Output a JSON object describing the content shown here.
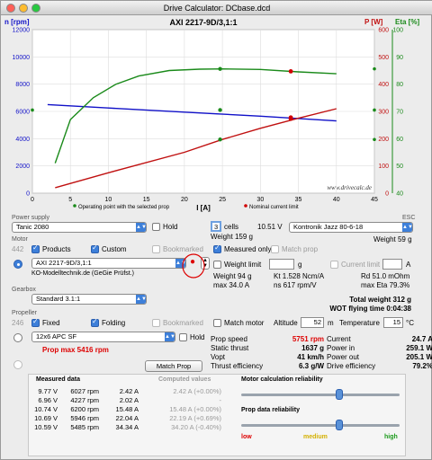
{
  "window": {
    "title": "Drive Calculator: DCbase.dcd"
  },
  "chart_data": {
    "type": "line",
    "title": "AXI 2217-9D/3,1:1",
    "xlabel": "I [A]",
    "ylabel_left": "n [rpm]",
    "ylabel_p": "P [W]",
    "ylabel_eta": "Eta [%]",
    "xlim": [
      0,
      45
    ],
    "ylim_left": [
      0,
      12000
    ],
    "ylim_p": [
      0,
      600
    ],
    "ylim_eta": [
      40,
      100
    ],
    "x_ticks": [
      "0",
      "5",
      "10",
      "15",
      "20",
      "25",
      "30",
      "35",
      "40",
      "45"
    ],
    "y_left_ticks": [
      "0",
      "2000",
      "4000",
      "6000",
      "8000",
      "10000",
      "12000"
    ],
    "y_p_ticks": [
      "0",
      "100",
      "200",
      "300",
      "400",
      "500",
      "600"
    ],
    "y_eta_ticks": [
      "40",
      "50",
      "60",
      "70",
      "80",
      "90",
      "100"
    ],
    "series": [
      {
        "key": "rpm",
        "color": "#1010c8",
        "axis": "left",
        "x": [
          2,
          10,
          20,
          30,
          40
        ],
        "y": [
          6500,
          6250,
          5950,
          5650,
          5300
        ]
      },
      {
        "key": "eta",
        "color": "#1a8a1a",
        "axis": "eta",
        "x": [
          3,
          5,
          8,
          11,
          14,
          18,
          22,
          25,
          30,
          35,
          40
        ],
        "y": [
          51,
          67,
          75,
          80,
          83,
          85,
          85.5,
          85.6,
          85.4,
          84.5,
          83.8
        ]
      },
      {
        "key": "power",
        "color": "#c01010",
        "axis": "p",
        "x": [
          3,
          10,
          20,
          25,
          30,
          35,
          40
        ],
        "y": [
          20,
          75,
          150,
          197,
          238,
          275,
          310
        ]
      }
    ],
    "operating_points": [
      {
        "x": 24.7,
        "y": 6100,
        "axis": "left",
        "color": "#1a8a1a"
      },
      {
        "x": 24.7,
        "y": 85.6,
        "axis": "eta",
        "color": "#1a8a1a"
      },
      {
        "x": 24.7,
        "y": 197,
        "axis": "p",
        "color": "#1a8a1a"
      }
    ],
    "nominal_points": [
      {
        "x": 34,
        "y": 5550,
        "axis": "left",
        "color": "#d00000"
      },
      {
        "x": 34,
        "y": 84.7,
        "axis": "eta",
        "color": "#d00000"
      },
      {
        "x": 34,
        "y": 273,
        "axis": "p",
        "color": "#d00000"
      }
    ],
    "legend": [
      "Operating point with the selected prop",
      "Nominal current limit"
    ],
    "watermark": "www.drivecalc.de"
  },
  "power_supply": {
    "label": "Power supply",
    "battery": "Tanic 2080",
    "hold": "Hold",
    "cells": "3",
    "cells_label": "cells",
    "voltage": "10.51 V",
    "weight": "Weight 159 g",
    "esc_label": "ESC",
    "esc": "Kontronik Jazz 80-6-18",
    "esc_weight": "Weight 59 g"
  },
  "motor": {
    "label": "Motor",
    "count": "442",
    "products": "Products",
    "custom": "Custom",
    "bookmarked": "Bookmarked",
    "measured_only": "Measured only",
    "match_prop": "Match prop",
    "name": "AXI 2217-9D/3,1:1",
    "source": "KO-Modelltechnik.de (GeGie Prüfst.)",
    "weight_limit": "Weight limit",
    "g": "g",
    "current_limit": "Current limit",
    "a": "A",
    "weight": "Weight 94 g",
    "max": "max 34.0 A",
    "kt": "Kt 1.528 Ncm/A",
    "ns": "ns 617 rpm/V",
    "rd": "Rd 51.0 mOhm",
    "max_eta": "max Eta 79.3%"
  },
  "gearbox": {
    "label": "Gearbox",
    "value": "Standard 3.1:1",
    "total_weight": "Total weight 312 g",
    "wot": "WOT flying time 0:04:38"
  },
  "propeller": {
    "label": "Propeller",
    "count": "246",
    "fixed": "Fixed",
    "folding": "Folding",
    "bookmarked": "Bookmarked",
    "match_motor": "Match motor",
    "altitude_label": "Altitude",
    "altitude": "52",
    "m": "m",
    "temperature_label": "Temperature",
    "temperature": "15",
    "celsius": "°C",
    "name": "12x6 APC SF",
    "hold": "Hold",
    "prop_max": "Prop max 5416 rpm",
    "match_prop_btn": "Match Prop"
  },
  "results": {
    "left": [
      [
        "Prop speed",
        "5751 rpm"
      ],
      [
        "Static thrust",
        "1637 g"
      ],
      [
        "Vopt",
        "41 km/h"
      ],
      [
        "Thrust efficiency",
        "6.3 g/W"
      ]
    ],
    "right": [
      [
        "Current",
        "24.7 A"
      ],
      [
        "Power in",
        "259.1 W"
      ],
      [
        "Power out",
        "205.1 W"
      ],
      [
        "Drive efficiency",
        "79.2%"
      ]
    ]
  },
  "measured": {
    "header_measured": "Measured data",
    "header_computed": "Computed values",
    "rows": [
      [
        "9.77 V",
        "6027 rpm",
        "2.42 A",
        "2.42 A (+0.00%)"
      ],
      [
        "6.96 V",
        "4227 rpm",
        "2.02 A",
        "-"
      ],
      [
        "10.74 V",
        "6200 rpm",
        "15.48 A",
        "15.48 A (+0.00%)"
      ],
      [
        "10.69 V",
        "5946 rpm",
        "22.04 A",
        "22.19 A (+0.69%)"
      ],
      [
        "10.59 V",
        "5485 rpm",
        "34.34 A",
        "34.20 A (-0.40%)"
      ]
    ],
    "motor_rel": "Motor calculation reliability",
    "prop_rel": "Prop data reliability",
    "low": "low",
    "medium": "medium",
    "high": "high",
    "motor_rel_value": 0.62,
    "prop_rel_value": 0.62
  },
  "colors": {
    "accent": "#3d7fd9",
    "red": "#d00000",
    "green": "#1a8a1a",
    "blue": "#1010c8"
  }
}
